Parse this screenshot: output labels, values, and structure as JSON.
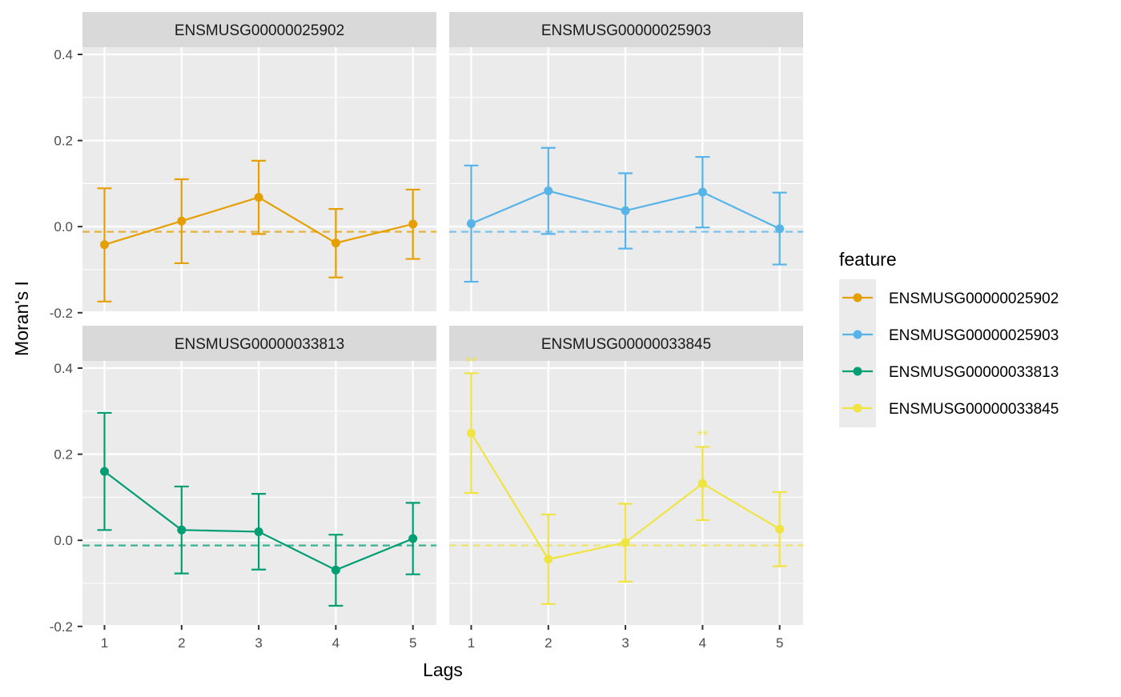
{
  "chart_data": {
    "type": "line",
    "subtype": "faceted-errorbar",
    "xlabel": "Lags",
    "ylabel": "Moran's I",
    "x": [
      1,
      2,
      3,
      4,
      5
    ],
    "x_ticks": [
      "1",
      "2",
      "3",
      "4",
      "5"
    ],
    "y_ticks": [
      "-0.2",
      "0.0",
      "0.2",
      "0.4"
    ],
    "y_tick_values": [
      -0.2,
      0.0,
      0.2,
      0.4
    ],
    "ylim": [
      -0.2,
      0.42
    ],
    "expected_value": -0.012,
    "grid": true,
    "facet_layout": "2x2",
    "legend": {
      "title": "feature",
      "position": "right",
      "entries": [
        "ENSMUSG00000025902",
        "ENSMUSG00000025903",
        "ENSMUSG00000033813",
        "ENSMUSG00000033845"
      ]
    },
    "series": [
      {
        "name": "ENSMUSG00000025902",
        "color": "#E69F00",
        "values": [
          -0.042,
          0.013,
          0.068,
          -0.038,
          0.006
        ],
        "lower": [
          -0.174,
          -0.085,
          -0.017,
          -0.118,
          -0.075
        ],
        "upper": [
          0.089,
          0.11,
          0.153,
          0.041,
          0.086
        ],
        "significance": [
          "",
          "",
          "",
          "",
          ""
        ]
      },
      {
        "name": "ENSMUSG00000025903",
        "color": "#56B4E9",
        "values": [
          0.007,
          0.083,
          0.037,
          0.08,
          -0.005
        ],
        "lower": [
          -0.128,
          -0.017,
          -0.051,
          -0.002,
          -0.088
        ],
        "upper": [
          0.142,
          0.183,
          0.124,
          0.162,
          0.079
        ],
        "significance": [
          "",
          "",
          "",
          "",
          ""
        ]
      },
      {
        "name": "ENSMUSG00000033813",
        "color": "#009E73",
        "values": [
          0.16,
          0.024,
          0.02,
          -0.069,
          0.004
        ],
        "lower": [
          0.024,
          -0.077,
          -0.068,
          -0.152,
          -0.079
        ],
        "upper": [
          0.296,
          0.125,
          0.108,
          0.013,
          0.087
        ],
        "significance": [
          "",
          "",
          "",
          "",
          ""
        ]
      },
      {
        "name": "ENSMUSG00000033845",
        "color": "#F0E442",
        "values": [
          0.249,
          -0.044,
          -0.005,
          0.132,
          0.026
        ],
        "lower": [
          0.11,
          -0.148,
          -0.096,
          0.047,
          -0.06
        ],
        "upper": [
          0.388,
          0.06,
          0.085,
          0.217,
          0.112
        ],
        "significance": [
          "**",
          "",
          "",
          "**",
          ""
        ]
      }
    ]
  }
}
